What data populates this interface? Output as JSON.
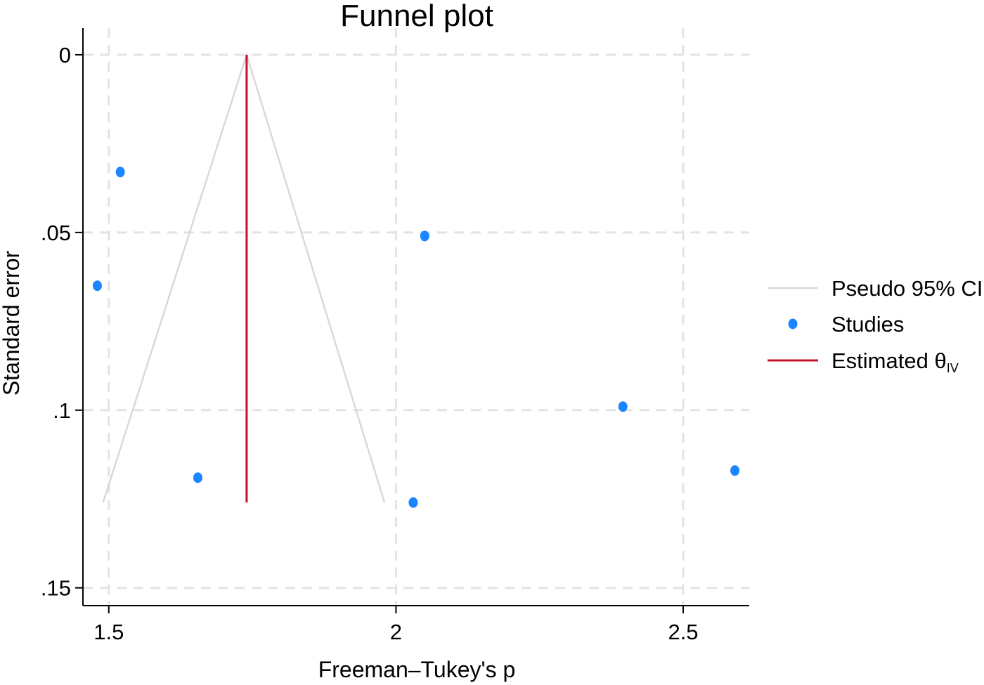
{
  "chart_data": {
    "type": "scatter",
    "title": "Funnel plot",
    "xlabel": "Freeman–Tukey's p",
    "ylabel": "Standard error",
    "xlim": [
      1.455,
      2.615
    ],
    "ylim": [
      0.155,
      -0.0075
    ],
    "y_axis_reversed": true,
    "grid": true,
    "x_ticks": [
      {
        "value": 1.5,
        "label": "1.5"
      },
      {
        "value": 2,
        "label": "2"
      },
      {
        "value": 2.5,
        "label": "2.5"
      }
    ],
    "y_ticks": [
      {
        "value": 0,
        "label": "0"
      },
      {
        "value": 0.05,
        "label": ".05"
      },
      {
        "value": 0.1,
        "label": ".1"
      },
      {
        "value": 0.15,
        "label": ".15"
      }
    ],
    "series": [
      {
        "name": "Pseudo 95% CI",
        "kind": "line",
        "color": "#d9d9d9",
        "points": [
          [
            1.49,
            0.126
          ],
          [
            1.74,
            0.0
          ],
          [
            1.98,
            0.126
          ]
        ]
      },
      {
        "name": "Studies",
        "kind": "scatter",
        "color": "#1a85ff",
        "points": [
          [
            1.52,
            0.033
          ],
          [
            1.48,
            0.065
          ],
          [
            1.655,
            0.119
          ],
          [
            2.05,
            0.051
          ],
          [
            2.03,
            0.126
          ],
          [
            2.395,
            0.099
          ],
          [
            2.59,
            0.117
          ]
        ]
      },
      {
        "name": "Estimated θIV",
        "legend_main": "Estimated θ",
        "legend_sub": "IV",
        "kind": "line",
        "color": "#c8102e",
        "points": [
          [
            1.74,
            0.0
          ],
          [
            1.74,
            0.126
          ]
        ]
      }
    ],
    "legend": {
      "placement": "right"
    }
  }
}
